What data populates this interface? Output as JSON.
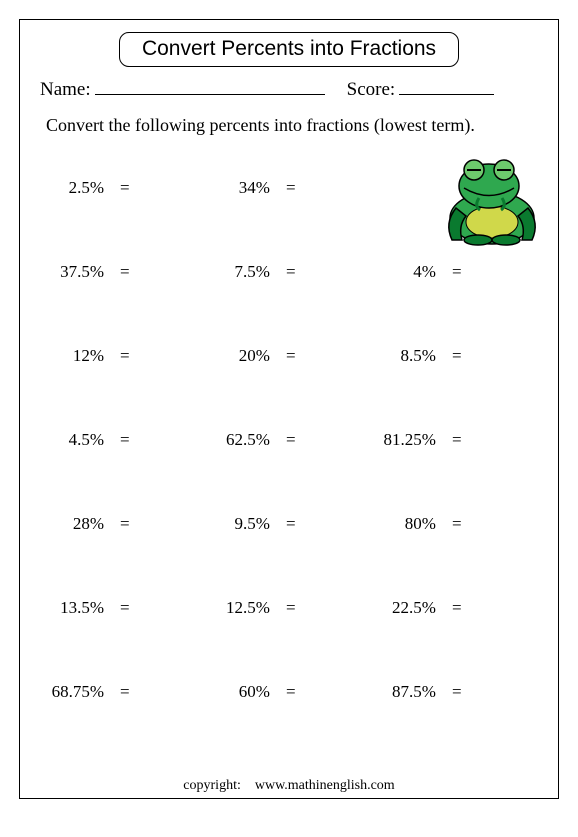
{
  "title": "Convert Percents into Fractions",
  "name_label": "Name:",
  "score_label": "Score:",
  "instruction": "Convert the following percents into fractions (lowest term).",
  "equals": "=",
  "copyright_label": "copyright:",
  "copyright_site": "www.mathinenglish.com",
  "frog": {
    "body_dark": "#0a7a2f",
    "body_mid": "#2fa84f",
    "body_light": "#6dc96d",
    "belly": "#d0d84a",
    "outline": "#000000"
  },
  "rows": [
    [
      {
        "v": "2.5%"
      },
      {
        "v": "34%"
      },
      {
        "v": null
      }
    ],
    [
      {
        "v": "37.5%"
      },
      {
        "v": "7.5%"
      },
      {
        "v": "4%"
      }
    ],
    [
      {
        "v": "12%"
      },
      {
        "v": "20%"
      },
      {
        "v": "8.5%"
      }
    ],
    [
      {
        "v": "4.5%"
      },
      {
        "v": "62.5%"
      },
      {
        "v": "81.25%"
      }
    ],
    [
      {
        "v": "28%"
      },
      {
        "v": "9.5%"
      },
      {
        "v": "80%"
      }
    ],
    [
      {
        "v": "13.5%"
      },
      {
        "v": "12.5%"
      },
      {
        "v": "22.5%"
      }
    ],
    [
      {
        "v": "68.75%"
      },
      {
        "v": "60%"
      },
      {
        "v": "87.5%"
      }
    ]
  ]
}
